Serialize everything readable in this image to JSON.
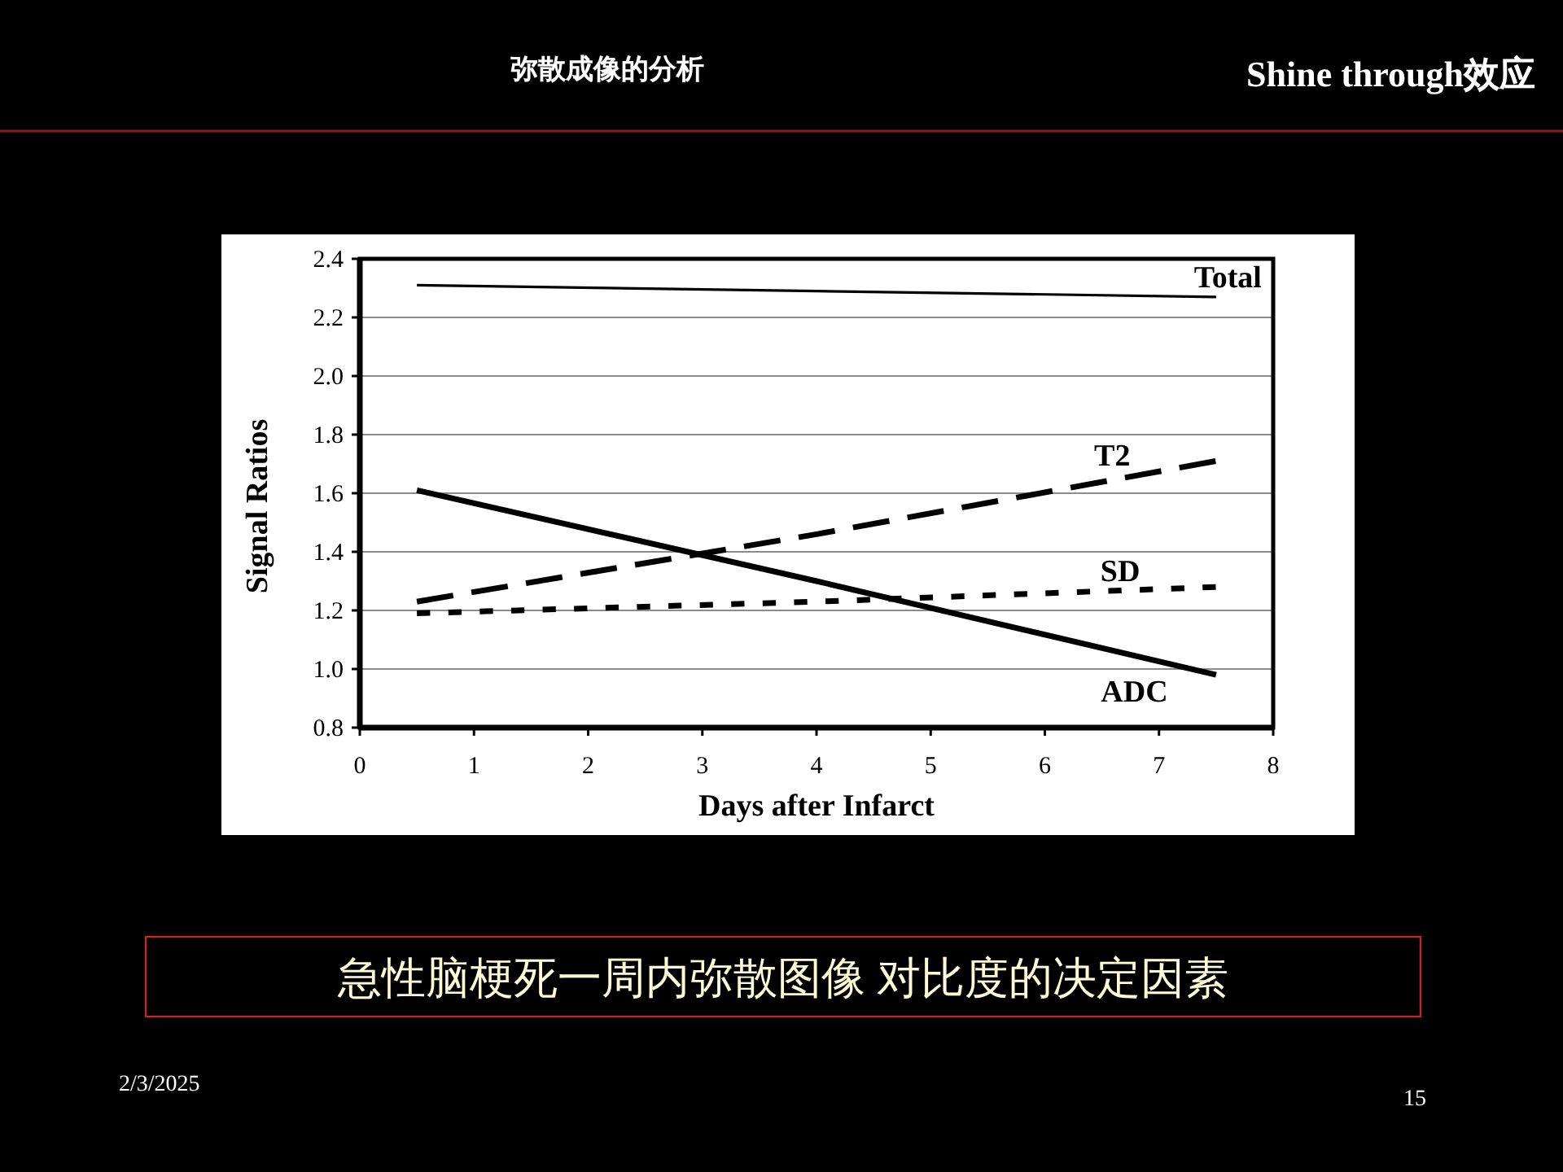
{
  "chart_data": {
    "type": "line",
    "title": "Shine through效应",
    "subtitle": "弥散成像的分析",
    "xlabel": "Days after Infarct",
    "ylabel": "Signal Ratios",
    "annotations": [
      "急性脑梗死一周内弥散图像 对比度的决定因素",
      "2/3/2025",
      "15"
    ],
    "x": [
      0.5,
      4,
      7.5
    ],
    "series": [
      {
        "name": "Total",
        "color": "#000000",
        "line_style": "solid",
        "values": [
          2.31,
          2.29,
          2.27
        ]
      },
      {
        "name": "T2",
        "color": "#000000",
        "line_style": "dashed",
        "values": [
          1.23,
          1.46,
          1.71
        ]
      },
      {
        "name": "SD",
        "color": "#000000",
        "line_style": "dotted",
        "values": [
          1.19,
          1.23,
          1.28
        ]
      },
      {
        "name": "ADC",
        "color": "#000000",
        "line_style": "solid",
        "values": [
          1.61,
          1.3,
          0.98
        ]
      }
    ],
    "xlim": [
      0,
      8
    ],
    "xticks": [
      0,
      1,
      2,
      3,
      4,
      5,
      6,
      7,
      8
    ],
    "ylim": [
      0.8,
      2.4
    ],
    "yticks": [
      0.8,
      {
        "value": 1,
        "label": "1.0"
      },
      1.2,
      1.4,
      1.6,
      1.8,
      {
        "value": 2,
        "label": "2.0"
      },
      2.2,
      2.4
    ],
    "grid": "y"
  }
}
